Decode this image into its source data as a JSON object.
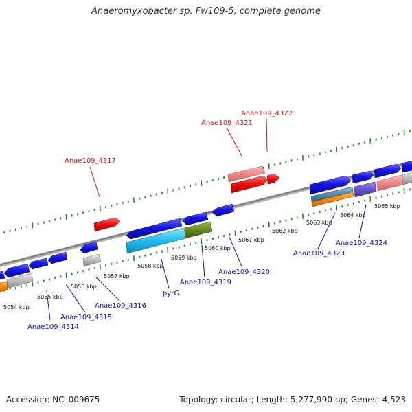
{
  "title": "Anaeromyxobacter sp. Fw109-5, complete genome",
  "footer": {
    "accession": "Accession: NC_009675",
    "topology": "Topology: circular; Length: 5,277,990 bp; Genes: 4,523"
  },
  "colors": {
    "forward_highlight": "#ee1111",
    "label_forward": "#cc1111",
    "label_reverse": "#1111aa",
    "gene_blue": "#1111dd",
    "gene_cyan": "#22bbee",
    "gene_olive": "#668822",
    "gene_gray": "#bbbbbb",
    "gene_pink": "#ee8888",
    "gene_orange": "#ff8800",
    "gene_steel": "#5588aa",
    "gene_violet": "#6655cc",
    "tick_green": "#228822",
    "backbone": "#888888"
  },
  "kbp_ticks": [
    "5054 kbp",
    "5055 kbp",
    "5056 kbp",
    "5057 kbp",
    "5058 kbp",
    "5059 kbp",
    "5060 kbp",
    "5061 kbp",
    "5062 kbp",
    "5063 kbp",
    "5064 kbp",
    "5065 kbp"
  ],
  "gene_labels": {
    "Anae109_4317": "Anae109_4317",
    "Anae109_4321": "Anae109_4321",
    "Anae109_4322": "Anae109_4322",
    "Anae109_4314": "Anae109_4314",
    "Anae109_4315": "Anae109_4315",
    "Anae109_4316": "Anae109_4316",
    "pyrG": "pyrG",
    "Anae109_4319": "Anae109_4319",
    "Anae109_4320": "Anae109_4320",
    "Anae109_4323": "Anae109_4323",
    "Anae109_4324": "Anae109_4324"
  }
}
